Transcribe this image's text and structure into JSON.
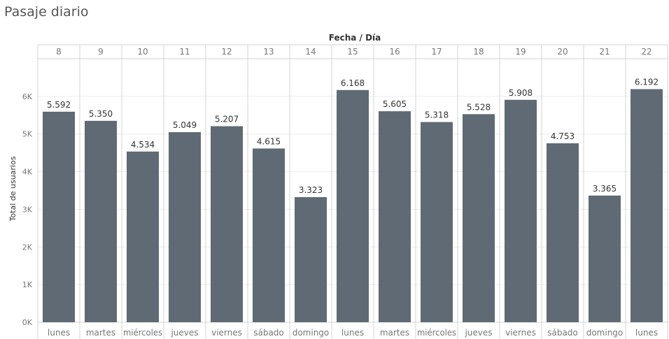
{
  "title": "Pasaje diario",
  "chart_data": {
    "type": "bar",
    "title": "Pasaje diario",
    "header_label": "Fecha / Día",
    "ylabel": "Total de usuarios",
    "ylim": [
      0,
      7000
    ],
    "y_ticks": [
      {
        "value": 0,
        "label": "0K"
      },
      {
        "value": 1000,
        "label": "1K"
      },
      {
        "value": 2000,
        "label": "2K"
      },
      {
        "value": 3000,
        "label": "3K"
      },
      {
        "value": 4000,
        "label": "4K"
      },
      {
        "value": 5000,
        "label": "5K"
      },
      {
        "value": 6000,
        "label": "6K"
      }
    ],
    "categories": [
      "8",
      "9",
      "10",
      "11",
      "12",
      "13",
      "14",
      "15",
      "16",
      "17",
      "18",
      "19",
      "20",
      "21",
      "22"
    ],
    "weekdays": [
      "lunes",
      "martes",
      "miércoles",
      "jueves",
      "viernes",
      "sábado",
      "domingo",
      "lunes",
      "martes",
      "miércoles",
      "jueves",
      "viernes",
      "sábado",
      "domingo",
      "lunes"
    ],
    "values": [
      5592,
      5350,
      4534,
      5049,
      5207,
      4615,
      3323,
      6168,
      5605,
      5318,
      5528,
      5908,
      4753,
      3365,
      6192
    ],
    "value_labels": [
      "5.592",
      "5.350",
      "4.534",
      "5.049",
      "5.207",
      "4.615",
      "3.323",
      "6.168",
      "5.605",
      "5.318",
      "5.528",
      "5.908",
      "4.753",
      "3.365",
      "6.192"
    ],
    "grid": true,
    "legend": "none",
    "colors": {
      "bar": "#5f6a74",
      "grid": "#ececec",
      "divider": "#d3d3d3",
      "text": "#333333",
      "tick_text": "#777777"
    }
  }
}
